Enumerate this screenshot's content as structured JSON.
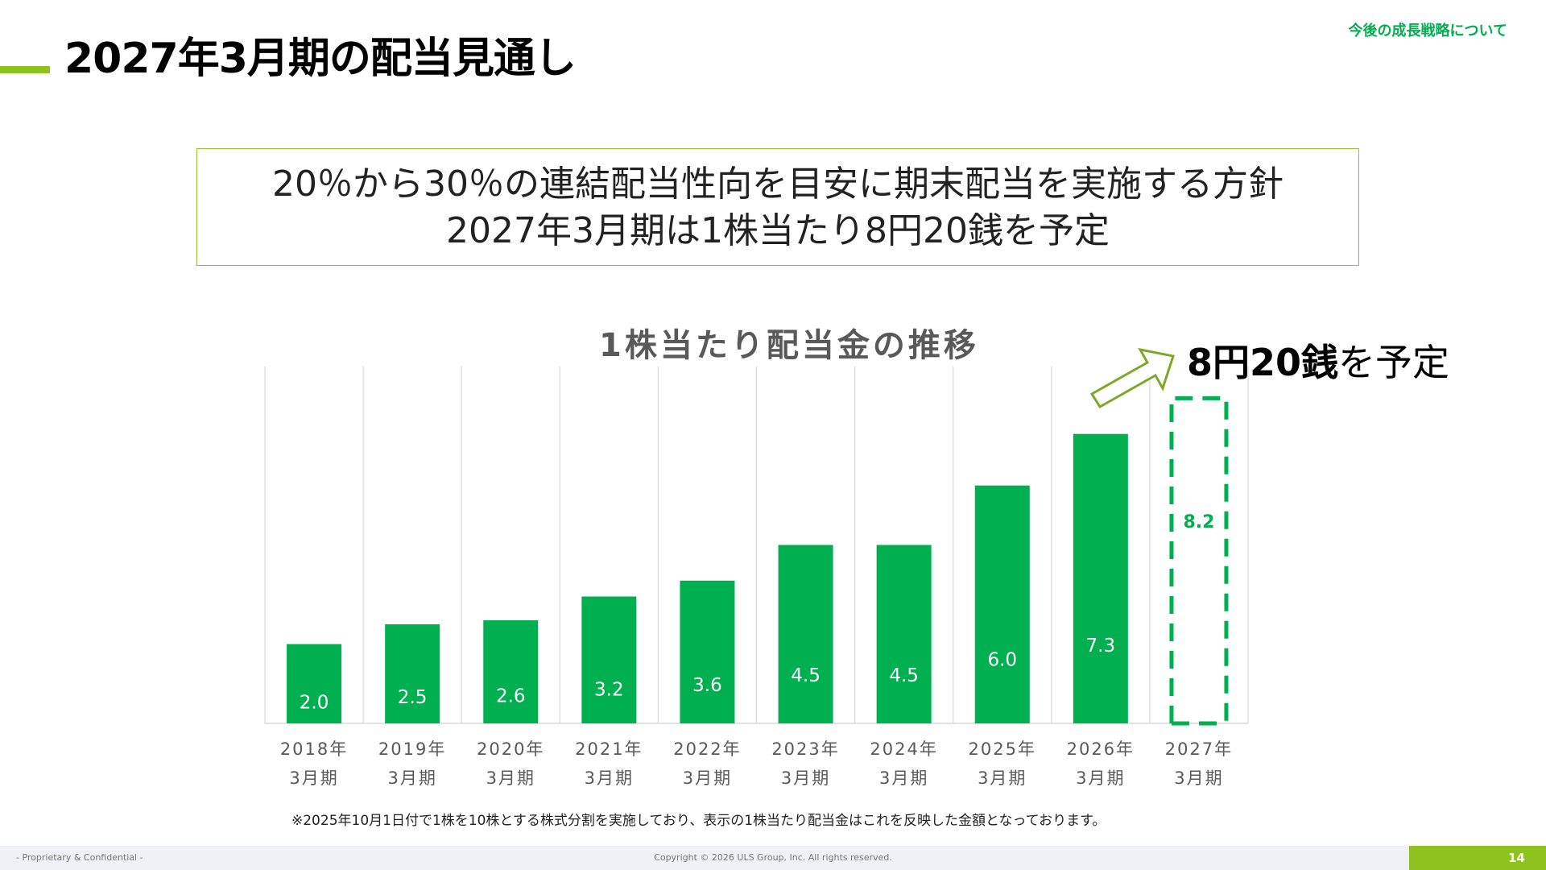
{
  "header": {
    "title": "2027年3月期の配当見通し",
    "section": "今後の成長戦略について"
  },
  "summary": {
    "line1": "20％から30％の連結配当性向を目安に期末配当を実施する方針",
    "line2": "2027年3月期は1株当たり8円20銭を予定"
  },
  "callout": {
    "amount": "8円20銭",
    "suffix": "を予定"
  },
  "chart_data": {
    "type": "bar",
    "title": "1株当たり配当金の推移",
    "categories": [
      [
        "2018年",
        "3月期"
      ],
      [
        "2019年",
        "3月期"
      ],
      [
        "2020年",
        "3月期"
      ],
      [
        "2021年",
        "3月期"
      ],
      [
        "2022年",
        "3月期"
      ],
      [
        "2023年",
        "3月期"
      ],
      [
        "2024年",
        "3月期"
      ],
      [
        "2025年",
        "3月期"
      ],
      [
        "2026年",
        "3月期"
      ],
      [
        "2027年",
        "3月期"
      ]
    ],
    "values": [
      2.0,
      2.5,
      2.6,
      3.2,
      3.6,
      4.5,
      4.5,
      6.0,
      7.3,
      8.2
    ],
    "labels": [
      "2.0",
      "2.5",
      "2.6",
      "3.2",
      "3.6",
      "4.5",
      "4.5",
      "6.0",
      "7.3",
      "8.2"
    ],
    "forecast": [
      false,
      false,
      false,
      false,
      false,
      false,
      false,
      false,
      false,
      true
    ],
    "ylim": [
      0,
      9
    ],
    "grid": "vertical",
    "colors": {
      "bar": "#00b050",
      "forecast_outline": "#00b050",
      "label_on_bar": "#ffffff",
      "axis_text": "#595959"
    }
  },
  "footnote": "※2025年10月1日付で1株を10株とする株式分割を実施しており、表示の1株当たり配当金はこれを反映した金額となっております。",
  "footer": {
    "left": "- Proprietary & Confidential -",
    "center": "Copyright © 2026 ULS Group, Inc.  All rights reserved.",
    "page": "14"
  },
  "colors": {
    "accent": "#8dc21f",
    "brand_green": "#00b050"
  }
}
